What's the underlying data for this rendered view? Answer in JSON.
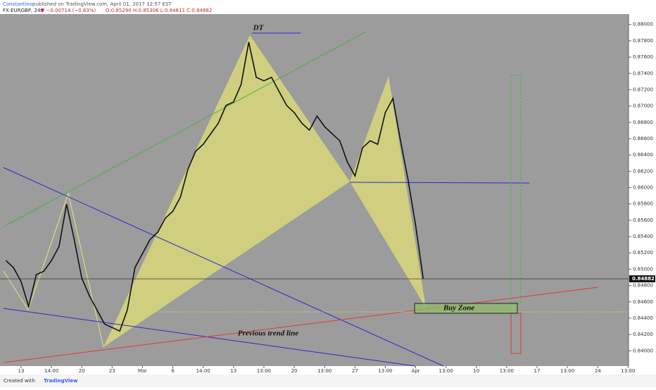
{
  "header": {
    "author": "Constantino",
    "published": "published on TradingView.com, April 01, 2017 12:57 EST",
    "symbol": "FX:EURGBP, 240",
    "change": "▼ −0.00714 (−0.83%)",
    "ohlc": "O:0.85290 H:0.85306 L:0.84811 C:0.84882"
  },
  "footer": {
    "created": "Created with",
    "brand": "TradingView"
  },
  "chart_data": {
    "type": "line",
    "color": "#111111",
    "annotations": [
      "DT",
      "Buy Zone",
      "Previous trend line"
    ],
    "categories": [
      null,
      null,
      "13",
      null,
      null,
      null,
      "14:00",
      null,
      null,
      null,
      "20",
      null,
      null,
      null,
      "23",
      null,
      null,
      null,
      "Mar",
      null,
      null,
      null,
      "6",
      null,
      null,
      null,
      "14:00",
      null,
      null,
      null,
      "13",
      null,
      null,
      null,
      "13:00",
      null,
      null,
      null,
      "20",
      null,
      null,
      null,
      "13:00",
      null,
      null,
      null,
      "27",
      null,
      null,
      null,
      "13:00",
      null,
      null,
      null,
      "Apr",
      null,
      null,
      null,
      "13:00",
      null,
      null,
      null,
      "10",
      null,
      null,
      null,
      "13:00",
      null,
      null,
      null,
      "17",
      null,
      null,
      null,
      "13:00",
      null,
      null,
      null,
      "24",
      null,
      null,
      null,
      "13:00"
    ],
    "values": [
      0.85106,
      0.85019,
      0.84847,
      0.84544,
      0.84933,
      0.84976,
      0.85106,
      0.85279,
      0.85797,
      0.85365,
      0.8489,
      0.84674,
      0.84501,
      0.84328,
      0.84285,
      0.84242,
      0.84501,
      0.85019,
      0.85192,
      0.85365,
      0.85451,
      0.85624,
      0.85711,
      0.85883,
      0.86229,
      0.86445,
      0.86531,
      0.86661,
      0.8679,
      0.87006,
      0.8705,
      0.87266,
      0.87784,
      0.87352,
      0.87309,
      0.87352,
      0.87179,
      0.87006,
      0.8692,
      0.8679,
      0.86704,
      0.86877,
      0.86747,
      0.86661,
      0.86575,
      0.86315,
      0.86143,
      0.86488,
      0.86575,
      0.86531,
      0.8692,
      0.87093,
      0.86575,
      0.86099,
      0.85538,
      0.84882,
      null,
      null,
      null,
      null,
      null,
      null,
      null,
      null,
      null,
      null,
      null,
      null,
      null,
      null,
      null,
      null,
      null,
      null,
      null,
      null,
      null,
      null,
      null,
      null,
      null,
      null,
      null
    ],
    "ylim": [
      0.8383,
      0.8811
    ],
    "yticks": [
      {
        "value": 0.84,
        "label": "0.84000"
      },
      {
        "value": 0.842,
        "label": "0.84200"
      },
      {
        "value": 0.844,
        "label": "0.84400"
      },
      {
        "value": 0.846,
        "label": "0.84600"
      },
      {
        "value": 0.848,
        "label": "0.84800"
      },
      {
        "value": 0.85,
        "label": "0.85000"
      },
      {
        "value": 0.852,
        "label": "0.85200"
      },
      {
        "value": 0.854,
        "label": "0.85400"
      },
      {
        "value": 0.856,
        "label": "0.85600"
      },
      {
        "value": 0.858,
        "label": "0.85800"
      },
      {
        "value": 0.86,
        "label": "0.86000"
      },
      {
        "value": 0.862,
        "label": "0.86200"
      },
      {
        "value": 0.864,
        "label": "0.86400"
      },
      {
        "value": 0.866,
        "label": "0.86600"
      },
      {
        "value": 0.868,
        "label": "0.86800"
      },
      {
        "value": 0.87,
        "label": "0.87000"
      },
      {
        "value": 0.872,
        "label": "0.87200"
      },
      {
        "value": 0.874,
        "label": "0.87400"
      },
      {
        "value": 0.876,
        "label": "0.87600"
      },
      {
        "value": 0.878,
        "label": "0.87800"
      },
      {
        "value": 0.88,
        "label": "0.88000"
      }
    ]
  }
}
